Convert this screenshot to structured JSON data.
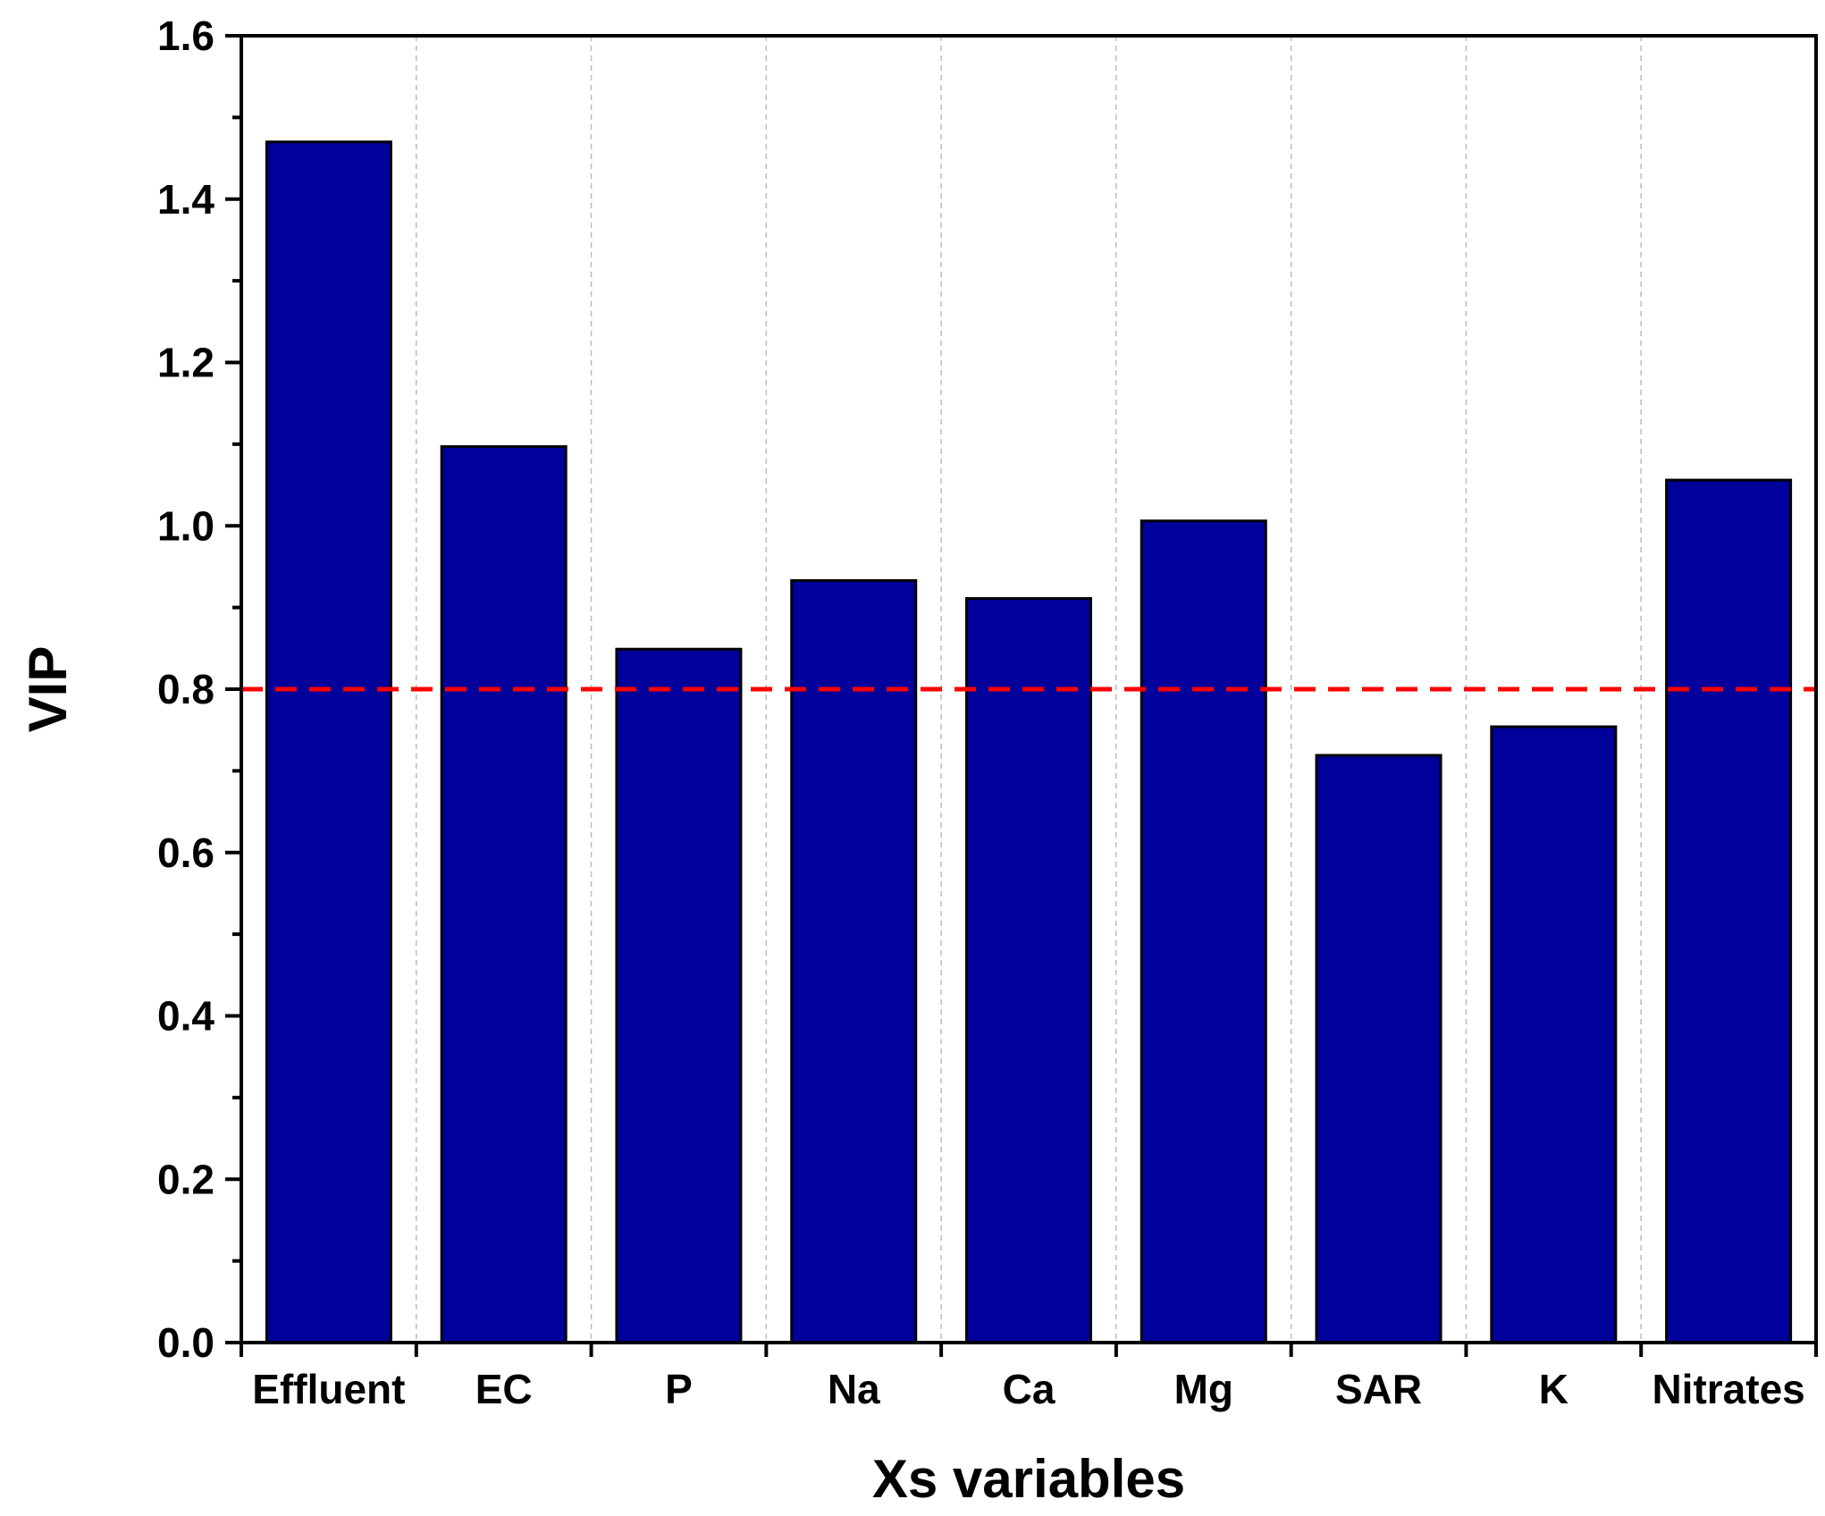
{
  "chart_data": {
    "type": "bar",
    "title": "",
    "xlabel": "Xs variables",
    "ylabel": "VIP",
    "categories": [
      "Effluent",
      "EC",
      "P",
      "Na",
      "Ca",
      "Mg",
      "SAR",
      "K",
      "Nitrates"
    ],
    "values": [
      1.47,
      1.097,
      0.849,
      0.933,
      0.911,
      1.006,
      0.719,
      0.754,
      1.056
    ],
    "ylim": [
      0,
      1.6
    ],
    "yticks": [
      "0.0",
      "0.2",
      "0.4",
      "0.6",
      "0.8",
      "1.0",
      "1.2",
      "1.4",
      "1.6"
    ],
    "threshold": 0.8,
    "grid": "vertical dashed between categories",
    "colors": {
      "bar_fill": "#00009a",
      "bar_stroke": "#000000",
      "threshold_line": "#ff0000",
      "grid": "#bbbbbb"
    }
  }
}
